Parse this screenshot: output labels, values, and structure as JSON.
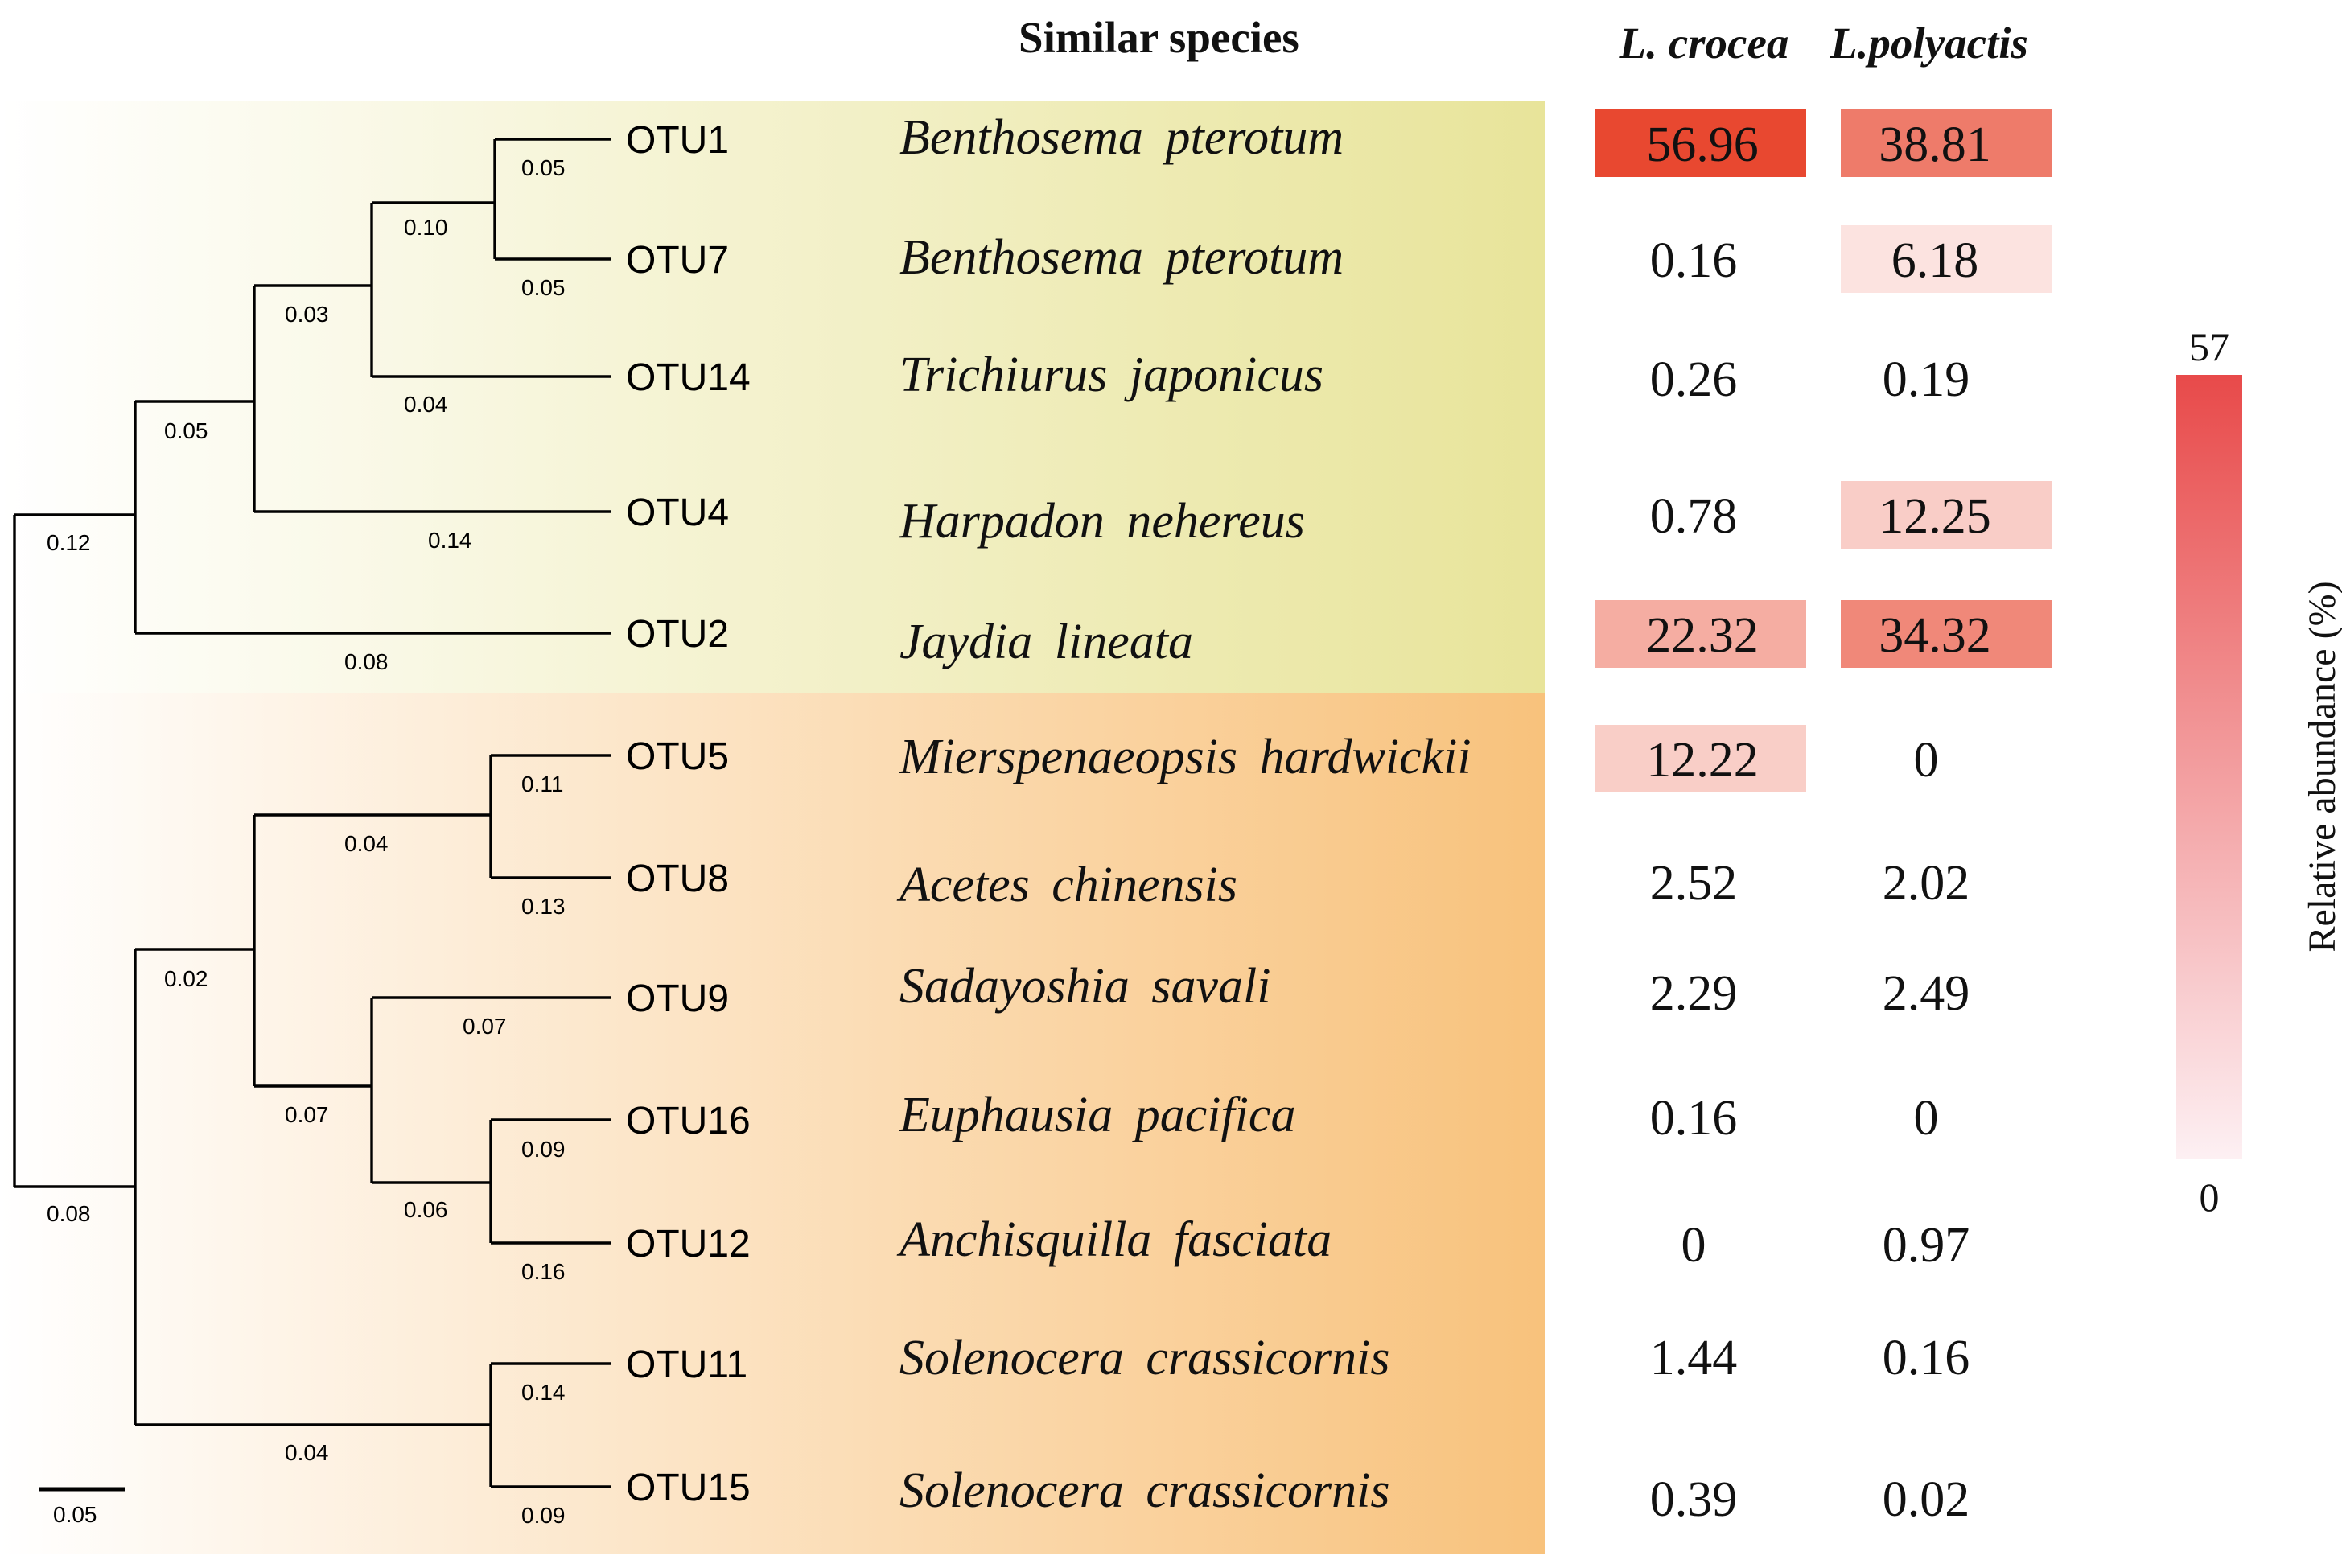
{
  "headers": {
    "species": "Similar species",
    "lcrocea": "L. crocea",
    "lpolyactis": "L.polyactis"
  },
  "colors": {
    "fish_group_end": "#e8e49a",
    "crustacean_group_end": "#f8c27c",
    "heat_max": "#e84a4a",
    "heat_min": "#fdf0f3"
  },
  "rows": [
    {
      "otu": "OTU1",
      "species": "Benthosema pterotum",
      "lcrocea": "56.96",
      "lpolyactis": "38.81"
    },
    {
      "otu": "OTU7",
      "species": "Benthosema pterotum",
      "lcrocea": "0.16",
      "lpolyactis": "6.18"
    },
    {
      "otu": "OTU14",
      "species": "Trichiurus japonicus",
      "lcrocea": "0.26",
      "lpolyactis": "0.19"
    },
    {
      "otu": "OTU4",
      "species": "Harpadon nehereus",
      "lcrocea": "0.78",
      "lpolyactis": "12.25"
    },
    {
      "otu": "OTU2",
      "species": "Jaydia lineata",
      "lcrocea": "22.32",
      "lpolyactis": "34.32"
    },
    {
      "otu": "OTU5",
      "species": "Mierspenaeopsis hardwickii",
      "lcrocea": "12.22",
      "lpolyactis": "0"
    },
    {
      "otu": "OTU8",
      "species": "Acetes chinensis",
      "lcrocea": "2.52",
      "lpolyactis": "2.02"
    },
    {
      "otu": "OTU9",
      "species": "Sadayoshia savali",
      "lcrocea": "2.29",
      "lpolyactis": "2.49"
    },
    {
      "otu": "OTU16",
      "species": "Euphausia pacifica",
      "lcrocea": "0.16",
      "lpolyactis": "0"
    },
    {
      "otu": "OTU12",
      "species": "Anchisquilla fasciata",
      "lcrocea": "0",
      "lpolyactis": "0.97"
    },
    {
      "otu": "OTU11",
      "species": "Solenocera crassicornis",
      "lcrocea": "1.44",
      "lpolyactis": "0.16"
    },
    {
      "otu": "OTU15",
      "species": "Solenocera crassicornis",
      "lcrocea": "0.39",
      "lpolyactis": "0.02"
    }
  ],
  "branch_lengths": {
    "otu1": "0.05",
    "otu7": "0.05",
    "otu1_otu7": "0.10",
    "otu14": "0.04",
    "clade_otu1_7_14": "0.03",
    "otu4": "0.14",
    "clade_with_otu4": "0.05",
    "otu2": "0.08",
    "fish_clade": "0.12",
    "otu5": "0.11",
    "otu8": "0.13",
    "otu5_otu8": "0.04",
    "otu9": "0.07",
    "otu16": "0.09",
    "otu12": "0.16",
    "otu16_otu12": "0.06",
    "otu9_clade": "0.07",
    "crustacean_inner": "0.02",
    "otu11": "0.14",
    "otu15": "0.09",
    "otu11_otu15": "0.04",
    "crustacean_clade": "0.08"
  },
  "scale_bar": "0.05",
  "colorbar": {
    "max_label": "57",
    "min_label": "0",
    "max_value": 57,
    "min_value": 0,
    "title": "Relative abundance (%)"
  }
}
